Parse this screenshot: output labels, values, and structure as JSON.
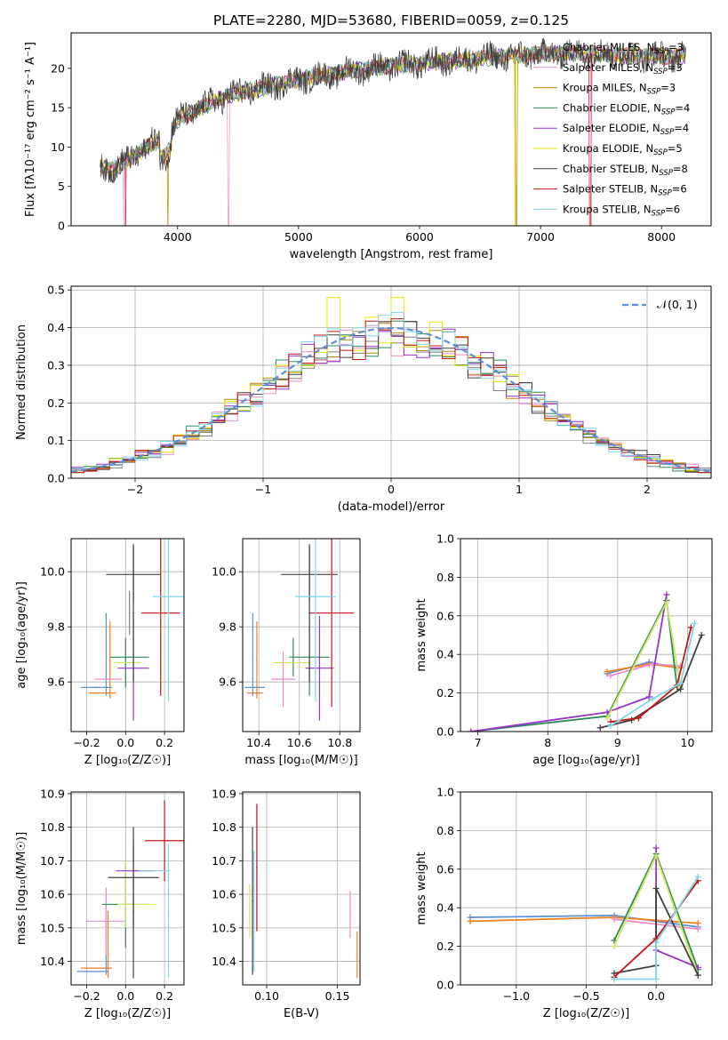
{
  "figure_title": "PLATE=2280, MJD=53680, FIBERID=0059, z=0.125",
  "colors": {
    "models": [
      "#808080",
      "#f08cc8",
      "#b8860b",
      "#2e8b57",
      "#9932cc",
      "#e6e600",
      "#404040",
      "#c81414",
      "#7fd4e8"
    ],
    "normal_curve": "#5b8fd6",
    "extra_series": [
      "#5b8fd6",
      "#f07f20",
      "#d0e860"
    ]
  },
  "chart_data": [
    {
      "id": "spectrum",
      "type": "line",
      "title": "PLATE=2280, MJD=53680, FIBERID=0059, z=0.125",
      "xlabel": "wavelength [Angstrom, rest frame]",
      "ylabel": "Flux [fλ10⁻¹⁷ erg cm⁻² s⁻¹ A⁻¹]",
      "xlim": [
        3120,
        8410
      ],
      "ylim": [
        0,
        24.5
      ],
      "xticks": [
        4000,
        5000,
        6000,
        7000,
        8000
      ],
      "yticks": [
        0,
        5,
        10,
        15,
        20
      ],
      "legend_position": "top-right",
      "grid": false,
      "observed_trend": {
        "wavelength": [
          3360,
          3500,
          3600,
          3700,
          3800,
          3900,
          4000,
          4200,
          4400,
          4600,
          4800,
          5000,
          5200,
          5400,
          5600,
          5800,
          6000,
          6200,
          6400,
          6600,
          6800,
          7000,
          7200,
          7400,
          7600,
          7800,
          8000,
          8200
        ],
        "flux": [
          7.5,
          7.3,
          8.5,
          9.5,
          10.5,
          11.0,
          13.5,
          15.0,
          16.5,
          17.2,
          17.8,
          18.6,
          19.0,
          19.6,
          20.0,
          20.4,
          20.6,
          20.9,
          21.1,
          21.4,
          21.6,
          21.8,
          22.0,
          21.9,
          21.7,
          21.6,
          21.5,
          21.5
        ]
      },
      "series": [
        {
          "name": "Chabrier MILES, N_SSP=3",
          "legend_label": "Chabrier MILES, N",
          "legend_sub": "SSP",
          "legend_tail": "=3"
        },
        {
          "name": "Salpeter MILES, N_SSP=3",
          "legend_label": "Salpeter MILES, N",
          "legend_sub": "SSP",
          "legend_tail": "=3"
        },
        {
          "name": "Kroupa MILES, N_SSP=3",
          "legend_label": "Kroupa MILES, N",
          "legend_sub": "SSP",
          "legend_tail": "=3"
        },
        {
          "name": "Chabrier ELODIE, N_SSP=4",
          "legend_label": "Chabrier ELODIE, N",
          "legend_sub": "SSP",
          "legend_tail": "=4"
        },
        {
          "name": "Salpeter ELODIE, N_SSP=4",
          "legend_label": "Salpeter ELODIE, N",
          "legend_sub": "SSP",
          "legend_tail": "=4"
        },
        {
          "name": "Kroupa ELODIE, N_SSP=5",
          "legend_label": "Kroupa ELODIE, N",
          "legend_sub": "SSP",
          "legend_tail": "=5"
        },
        {
          "name": "Chabrier STELIB, N_SSP=8",
          "legend_label": "Chabrier STELIB, N",
          "legend_sub": "SSP",
          "legend_tail": "=8"
        },
        {
          "name": "Salpeter STELIB, N_SSP=6",
          "legend_label": "Salpeter STELIB, N",
          "legend_sub": "SSP",
          "legend_tail": "=6"
        },
        {
          "name": "Kroupa STELIB, N_SSP=6",
          "legend_label": "Kroupa STELIB, N",
          "legend_sub": "SSP",
          "legend_tail": "=6"
        }
      ]
    },
    {
      "id": "residuals",
      "type": "line",
      "xlabel": "(data-model)/error",
      "ylabel": "Normed distribution",
      "xlim": [
        -2.5,
        2.5
      ],
      "ylim": [
        0,
        0.51
      ],
      "xticks": [
        -2,
        -1,
        0,
        1,
        2
      ],
      "xtick_labels": [
        "−2",
        "−1",
        "0",
        "1",
        "2"
      ],
      "yticks": [
        0.0,
        0.1,
        0.2,
        0.3,
        0.4,
        0.5
      ],
      "ytick_labels": [
        "0.0",
        "0.1",
        "0.2",
        "0.3",
        "0.4",
        "0.5"
      ],
      "grid": true,
      "legend_position": "top-right",
      "legend": "𝒩(0, 1)",
      "bin_edges_start": -2.5,
      "bin_width": 0.1,
      "histogram_peak_range": [
        0.38,
        0.48
      ]
    },
    {
      "id": "age_vs_Z",
      "type": "scatter",
      "xlabel": "Z [log₁₀(Z/Z☉)]",
      "ylabel": "age  [log₁₀(age/yr)]",
      "xlim": [
        -0.28,
        0.3
      ],
      "ylim": [
        9.42,
        10.12
      ],
      "xticks": [
        -0.2,
        0.0,
        0.2
      ],
      "xtick_labels": [
        "−0.2",
        "0.0",
        "0.2"
      ],
      "yticks": [
        9.6,
        9.8,
        10.0
      ],
      "ytick_labels": [
        "9.6",
        "9.8",
        "10.0"
      ],
      "grid": true,
      "points": [
        {
          "x": -0.15,
          "y": 9.58,
          "xerr": 0.08,
          "yerr": 0.0,
          "series": 9
        },
        {
          "x": -0.12,
          "y": 9.56,
          "xerr": 0.07,
          "yerr": 0.0,
          "series": 10
        },
        {
          "x": -0.1,
          "y": 9.7,
          "xerr": 0.0,
          "yerr": 0.15,
          "series": 9
        },
        {
          "x": -0.08,
          "y": 9.68,
          "xerr": 0.0,
          "yerr": 0.14,
          "series": 10
        },
        {
          "x": -0.09,
          "y": 9.61,
          "xerr": 0.07,
          "yerr": 0.0,
          "series": 1
        },
        {
          "x": 0.02,
          "y": 9.69,
          "xerr": 0.1,
          "yerr": 0.0,
          "series": 3
        },
        {
          "x": 0.0,
          "y": 9.67,
          "xerr": 0.0,
          "yerr": 0.09,
          "series": 3
        },
        {
          "x": 0.01,
          "y": 9.67,
          "xerr": 0.07,
          "yerr": 0.0,
          "series": 11
        },
        {
          "x": 0.04,
          "y": 9.65,
          "xerr": 0.08,
          "yerr": 0.19,
          "series": 4
        },
        {
          "x": 0.04,
          "y": 9.99,
          "xerr": 0.14,
          "yerr": 0.1,
          "series": 6
        },
        {
          "x": 0.04,
          "y": 9.85,
          "xerr": 0.0,
          "yerr": 0.25,
          "series": 6
        },
        {
          "x": 0.18,
          "y": 9.85,
          "xerr": 0.1,
          "yerr": 0.3,
          "series": 7
        },
        {
          "x": 0.22,
          "y": 9.91,
          "xerr": 0.08,
          "yerr": 0.38,
          "series": 8
        },
        {
          "x": 0.02,
          "y": 9.85,
          "xerr": 0.0,
          "yerr": 0.08,
          "series": 0
        }
      ]
    },
    {
      "id": "age_vs_mass",
      "type": "scatter",
      "xlabel": "mass [log₁₀(M/M☉)]",
      "ylabel": "",
      "xlim": [
        10.32,
        10.9
      ],
      "ylim": [
        9.42,
        10.12
      ],
      "xticks": [
        10.4,
        10.6,
        10.8
      ],
      "xtick_labels": [
        "10.4",
        "10.6",
        "10.8"
      ],
      "yticks": [
        9.6,
        9.8,
        10.0
      ],
      "ytick_labels": [
        "9.6",
        "9.8",
        "10.0"
      ],
      "grid": true,
      "points": [
        {
          "x": 10.37,
          "y": 9.58,
          "xerr": 0.0,
          "yerr": 0.0,
          "series": 9
        },
        {
          "x": 10.38,
          "y": 9.58,
          "xerr": 0.05,
          "yerr": 0.0,
          "series": 9
        },
        {
          "x": 10.38,
          "y": 9.56,
          "xerr": 0.04,
          "yerr": 0.0,
          "series": 10
        },
        {
          "x": 10.37,
          "y": 9.7,
          "xerr": 0.0,
          "yerr": 0.15,
          "series": 9
        },
        {
          "x": 10.39,
          "y": 9.68,
          "xerr": 0.0,
          "yerr": 0.14,
          "series": 10
        },
        {
          "x": 10.52,
          "y": 9.61,
          "xerr": 0.06,
          "yerr": 0.1,
          "series": 1
        },
        {
          "x": 10.57,
          "y": 9.69,
          "xerr": 0.0,
          "yerr": 0.07,
          "series": 3
        },
        {
          "x": 10.56,
          "y": 9.67,
          "xerr": 0.09,
          "yerr": 0.0,
          "series": 11
        },
        {
          "x": 10.65,
          "y": 9.69,
          "xerr": 0.1,
          "yerr": 0.14,
          "series": 3
        },
        {
          "x": 10.7,
          "y": 9.65,
          "xerr": 0.07,
          "yerr": 0.19,
          "series": 4
        },
        {
          "x": 10.65,
          "y": 9.99,
          "xerr": 0.14,
          "yerr": 0.1,
          "series": 6
        },
        {
          "x": 10.65,
          "y": 9.85,
          "xerr": 0.0,
          "yerr": 0.25,
          "series": 6
        },
        {
          "x": 10.76,
          "y": 9.85,
          "xerr": 0.11,
          "yerr": 0.34,
          "series": 7
        },
        {
          "x": 10.68,
          "y": 9.91,
          "xerr": 0.1,
          "yerr": 0.38,
          "series": 8
        }
      ]
    },
    {
      "id": "mass_weight_vs_age",
      "type": "line",
      "xlabel": "age  [log₁₀(age/yr)]",
      "ylabel": "mass weight",
      "xlim": [
        6.75,
        10.35
      ],
      "ylim": [
        0,
        1.0
      ],
      "xticks": [
        7,
        8,
        9,
        10
      ],
      "yticks": [
        0.0,
        0.2,
        0.4,
        0.6,
        0.8,
        1.0
      ],
      "ytick_labels": [
        "0.0",
        "0.2",
        "0.4",
        "0.6",
        "0.8",
        "1.0"
      ],
      "grid": true,
      "series": [
        {
          "color_index": 9,
          "x": [
            8.85,
            9.45,
            9.85
          ],
          "y": [
            0.3,
            0.36,
            0.33
          ]
        },
        {
          "color_index": 10,
          "x": [
            8.85,
            9.45,
            9.9
          ],
          "y": [
            0.31,
            0.35,
            0.33
          ]
        },
        {
          "color_index": 1,
          "x": [
            8.9,
            9.5,
            9.9
          ],
          "y": [
            0.29,
            0.35,
            0.34
          ]
        },
        {
          "color_index": 3,
          "x": [
            6.9,
            8.85,
            9.7,
            9.85
          ],
          "y": [
            0.0,
            0.08,
            0.68,
            0.23
          ]
        },
        {
          "color_index": 4,
          "x": [
            6.9,
            8.85,
            9.45,
            9.7
          ],
          "y": [
            0.0,
            0.1,
            0.18,
            0.71
          ]
        },
        {
          "color_index": 11,
          "x": [
            8.85,
            9.7,
            9.9
          ],
          "y": [
            0.07,
            0.67,
            0.23
          ]
        },
        {
          "color_index": 6,
          "x": [
            8.75,
            9.2,
            9.9,
            10.2
          ],
          "y": [
            0.02,
            0.06,
            0.22,
            0.5
          ]
        },
        {
          "color_index": 7,
          "x": [
            8.9,
            9.3,
            9.85,
            10.05
          ],
          "y": [
            0.05,
            0.07,
            0.24,
            0.54
          ]
        },
        {
          "color_index": 8,
          "x": [
            8.9,
            9.5,
            9.9,
            10.1
          ],
          "y": [
            0.03,
            0.17,
            0.25,
            0.56
          ]
        }
      ]
    },
    {
      "id": "mass_vs_Z",
      "type": "scatter",
      "xlabel": "Z [log₁₀(Z/Z☉)]",
      "ylabel": "mass [log₁₀(M/M☉)]",
      "xlim": [
        -0.28,
        0.3
      ],
      "ylim": [
        10.33,
        10.905
      ],
      "xticks": [
        -0.2,
        0.0,
        0.2
      ],
      "xtick_labels": [
        "−0.2",
        "0.0",
        "0.2"
      ],
      "yticks": [
        10.4,
        10.5,
        10.6,
        10.7,
        10.8,
        10.9
      ],
      "ytick_labels": [
        "10.4",
        "10.5",
        "10.6",
        "10.7",
        "10.8",
        "10.9"
      ],
      "grid": true,
      "points": [
        {
          "x": -0.17,
          "y": 10.37,
          "xerr": 0.08,
          "yerr": 0.0,
          "series": 9
        },
        {
          "x": -0.15,
          "y": 10.38,
          "xerr": 0.08,
          "yerr": 0.0,
          "series": 10
        },
        {
          "x": -0.1,
          "y": 10.48,
          "xerr": 0.0,
          "yerr": 0.12,
          "series": 9
        },
        {
          "x": -0.09,
          "y": 10.45,
          "xerr": 0.0,
          "yerr": 0.1,
          "series": 10
        },
        {
          "x": -0.1,
          "y": 10.52,
          "xerr": 0.1,
          "yerr": 0.1,
          "series": 1
        },
        {
          "x": 0.0,
          "y": 10.57,
          "xerr": 0.12,
          "yerr": 0.13,
          "series": 3
        },
        {
          "x": 0.06,
          "y": 10.57,
          "xerr": 0.1,
          "yerr": 0.0,
          "series": 11
        },
        {
          "x": 0.0,
          "y": 10.6,
          "xerr": 0.0,
          "yerr": 0.1,
          "series": 11
        },
        {
          "x": 0.05,
          "y": 10.67,
          "xerr": 0.1,
          "yerr": 0.0,
          "series": 4
        },
        {
          "x": 0.04,
          "y": 10.65,
          "xerr": 0.13,
          "yerr": 0.15,
          "series": 6
        },
        {
          "x": 0.04,
          "y": 10.55,
          "xerr": 0.0,
          "yerr": 0.2,
          "series": 6
        },
        {
          "x": 0.2,
          "y": 10.76,
          "xerr": 0.1,
          "yerr": 0.12,
          "series": 7
        },
        {
          "x": 0.15,
          "y": 10.67,
          "xerr": 0.08,
          "yerr": 0.0,
          "series": 8
        },
        {
          "x": 0.22,
          "y": 10.55,
          "xerr": 0.0,
          "yerr": 0.2,
          "series": 8
        }
      ]
    },
    {
      "id": "mass_vs_EBV",
      "type": "scatter",
      "xlabel": "E(B-V)",
      "ylabel": "",
      "xlim": [
        0.083,
        0.166
      ],
      "ylim": [
        10.33,
        10.905
      ],
      "xticks": [
        0.1,
        0.15
      ],
      "xtick_labels": [
        "0.10",
        "0.15"
      ],
      "yticks": [
        10.4,
        10.5,
        10.6,
        10.7,
        10.8,
        10.9
      ],
      "ytick_labels": [
        "10.4",
        "10.5",
        "10.6",
        "10.7",
        "10.8",
        "10.9"
      ],
      "grid": true,
      "points": [
        {
          "x": 0.088,
          "y": 10.55,
          "xerr": 0.0,
          "yerr": 0.08,
          "series": 11
        },
        {
          "x": 0.09,
          "y": 10.58,
          "xerr": 0.0,
          "yerr": 0.22,
          "series": 6
        },
        {
          "x": 0.091,
          "y": 10.55,
          "xerr": 0.0,
          "yerr": 0.18,
          "series": 8
        },
        {
          "x": 0.093,
          "y": 10.68,
          "xerr": 0.0,
          "yerr": 0.19,
          "series": 7
        },
        {
          "x": 0.159,
          "y": 10.54,
          "xerr": 0.0,
          "yerr": 0.07,
          "series": 1
        },
        {
          "x": 0.164,
          "y": 10.42,
          "xerr": 0.0,
          "yerr": 0.07,
          "series": 10
        }
      ]
    },
    {
      "id": "mass_weight_vs_Z",
      "type": "line",
      "xlabel": "Z [log₁₀(Z/Z☉)]",
      "ylabel": "mass weight",
      "xlim": [
        -1.4,
        0.4
      ],
      "ylim": [
        0,
        1.0
      ],
      "xticks": [
        -1.0,
        -0.5,
        0.0
      ],
      "xtick_labels": [
        "−1.0",
        "−0.5",
        "0.0"
      ],
      "yticks": [
        0.0,
        0.2,
        0.4,
        0.6,
        0.8,
        1.0
      ],
      "ytick_labels": [
        "0.0",
        "0.2",
        "0.4",
        "0.6",
        "0.8",
        "1.0"
      ],
      "grid": true,
      "series": [
        {
          "color_index": 9,
          "x": [
            -1.33,
            -0.3,
            0.3
          ],
          "y": [
            0.35,
            0.36,
            0.3
          ]
        },
        {
          "color_index": 10,
          "x": [
            -1.33,
            -0.3,
            0.3
          ],
          "y": [
            0.33,
            0.35,
            0.32
          ]
        },
        {
          "color_index": 1,
          "x": [
            -0.3,
            0.3
          ],
          "y": [
            0.34,
            0.29
          ]
        },
        {
          "color_index": 3,
          "x": [
            -0.3,
            0.0,
            0.3
          ],
          "y": [
            0.23,
            0.68,
            0.08
          ]
        },
        {
          "color_index": 4,
          "x": [
            0.0,
            0.0,
            0.3
          ],
          "y": [
            0.71,
            0.18,
            0.09
          ]
        },
        {
          "color_index": 11,
          "x": [
            -0.3,
            0.0,
            0.3
          ],
          "y": [
            0.2,
            0.67,
            0.05
          ]
        },
        {
          "color_index": 6,
          "x": [
            -0.3,
            0.0,
            0.0,
            0.3
          ],
          "y": [
            0.06,
            0.1,
            0.5,
            0.05
          ]
        },
        {
          "color_index": 7,
          "x": [
            -0.3,
            0.0,
            0.3
          ],
          "y": [
            0.04,
            0.24,
            0.54
          ]
        },
        {
          "color_index": 8,
          "x": [
            -0.3,
            0.0,
            0.0,
            0.3
          ],
          "y": [
            0.03,
            0.03,
            0.22,
            0.56
          ]
        }
      ]
    }
  ]
}
